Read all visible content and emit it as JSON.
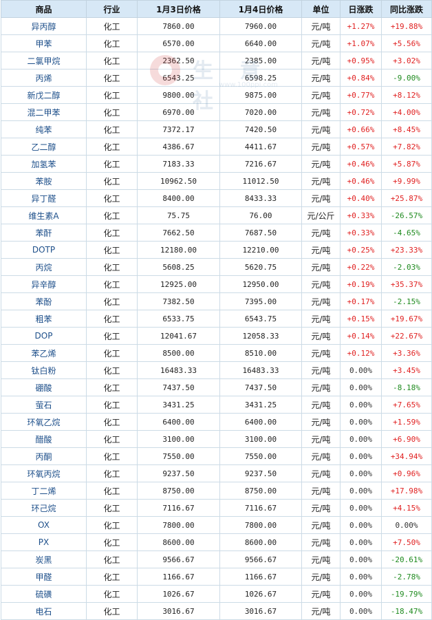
{
  "headers": [
    "商品",
    "行业",
    "1月3日价格",
    "1月4日价格",
    "单位",
    "日涨跌",
    "同比涨跌"
  ],
  "watermark": {
    "text": "生 意 社",
    "url": "www.100ppi.com"
  },
  "colors": {
    "up": "#e02020",
    "down": "#1e8a1e",
    "header_bg": "#d7e8f6",
    "name": "#1d4f8a"
  },
  "rows": [
    {
      "name": "异丙醇",
      "industry": "化工",
      "p1": "7860.00",
      "p2": "7960.00",
      "unit": "元/吨",
      "daily": "+1.27%",
      "yoy": "+19.88%"
    },
    {
      "name": "甲苯",
      "industry": "化工",
      "p1": "6570.00",
      "p2": "6640.00",
      "unit": "元/吨",
      "daily": "+1.07%",
      "yoy": "+5.56%"
    },
    {
      "name": "二氯甲烷",
      "industry": "化工",
      "p1": "2362.50",
      "p2": "2385.00",
      "unit": "元/吨",
      "daily": "+0.95%",
      "yoy": "+3.02%"
    },
    {
      "name": "丙烯",
      "industry": "化工",
      "p1": "6543.25",
      "p2": "6598.25",
      "unit": "元/吨",
      "daily": "+0.84%",
      "yoy": "-9.00%"
    },
    {
      "name": "新戊二醇",
      "industry": "化工",
      "p1": "9800.00",
      "p2": "9875.00",
      "unit": "元/吨",
      "daily": "+0.77%",
      "yoy": "+8.12%"
    },
    {
      "name": "混二甲苯",
      "industry": "化工",
      "p1": "6970.00",
      "p2": "7020.00",
      "unit": "元/吨",
      "daily": "+0.72%",
      "yoy": "+4.00%"
    },
    {
      "name": "纯苯",
      "industry": "化工",
      "p1": "7372.17",
      "p2": "7420.50",
      "unit": "元/吨",
      "daily": "+0.66%",
      "yoy": "+8.45%"
    },
    {
      "name": "乙二醇",
      "industry": "化工",
      "p1": "4386.67",
      "p2": "4411.67",
      "unit": "元/吨",
      "daily": "+0.57%",
      "yoy": "+7.82%"
    },
    {
      "name": "加氢苯",
      "industry": "化工",
      "p1": "7183.33",
      "p2": "7216.67",
      "unit": "元/吨",
      "daily": "+0.46%",
      "yoy": "+5.87%"
    },
    {
      "name": "苯胺",
      "industry": "化工",
      "p1": "10962.50",
      "p2": "11012.50",
      "unit": "元/吨",
      "daily": "+0.46%",
      "yoy": "+9.99%"
    },
    {
      "name": "异丁醛",
      "industry": "化工",
      "p1": "8400.00",
      "p2": "8433.33",
      "unit": "元/吨",
      "daily": "+0.40%",
      "yoy": "+25.87%"
    },
    {
      "name": "维生素A",
      "industry": "化工",
      "p1": "75.75",
      "p2": "76.00",
      "unit": "元/公斤",
      "daily": "+0.33%",
      "yoy": "-26.57%"
    },
    {
      "name": "苯酐",
      "industry": "化工",
      "p1": "7662.50",
      "p2": "7687.50",
      "unit": "元/吨",
      "daily": "+0.33%",
      "yoy": "-4.65%"
    },
    {
      "name": "DOTP",
      "industry": "化工",
      "p1": "12180.00",
      "p2": "12210.00",
      "unit": "元/吨",
      "daily": "+0.25%",
      "yoy": "+23.33%"
    },
    {
      "name": "丙烷",
      "industry": "化工",
      "p1": "5608.25",
      "p2": "5620.75",
      "unit": "元/吨",
      "daily": "+0.22%",
      "yoy": "-2.03%"
    },
    {
      "name": "异辛醇",
      "industry": "化工",
      "p1": "12925.00",
      "p2": "12950.00",
      "unit": "元/吨",
      "daily": "+0.19%",
      "yoy": "+35.37%"
    },
    {
      "name": "苯酚",
      "industry": "化工",
      "p1": "7382.50",
      "p2": "7395.00",
      "unit": "元/吨",
      "daily": "+0.17%",
      "yoy": "-2.15%"
    },
    {
      "name": "粗苯",
      "industry": "化工",
      "p1": "6533.75",
      "p2": "6543.75",
      "unit": "元/吨",
      "daily": "+0.15%",
      "yoy": "+19.67%"
    },
    {
      "name": "DOP",
      "industry": "化工",
      "p1": "12041.67",
      "p2": "12058.33",
      "unit": "元/吨",
      "daily": "+0.14%",
      "yoy": "+22.67%"
    },
    {
      "name": "苯乙烯",
      "industry": "化工",
      "p1": "8500.00",
      "p2": "8510.00",
      "unit": "元/吨",
      "daily": "+0.12%",
      "yoy": "+3.36%"
    },
    {
      "name": "钛白粉",
      "industry": "化工",
      "p1": "16483.33",
      "p2": "16483.33",
      "unit": "元/吨",
      "daily": "0.00%",
      "yoy": "+3.45%"
    },
    {
      "name": "硼酸",
      "industry": "化工",
      "p1": "7437.50",
      "p2": "7437.50",
      "unit": "元/吨",
      "daily": "0.00%",
      "yoy": "-8.18%"
    },
    {
      "name": "萤石",
      "industry": "化工",
      "p1": "3431.25",
      "p2": "3431.25",
      "unit": "元/吨",
      "daily": "0.00%",
      "yoy": "+7.65%"
    },
    {
      "name": "环氧乙烷",
      "industry": "化工",
      "p1": "6400.00",
      "p2": "6400.00",
      "unit": "元/吨",
      "daily": "0.00%",
      "yoy": "+1.59%"
    },
    {
      "name": "醋酸",
      "industry": "化工",
      "p1": "3100.00",
      "p2": "3100.00",
      "unit": "元/吨",
      "daily": "0.00%",
      "yoy": "+6.90%"
    },
    {
      "name": "丙酮",
      "industry": "化工",
      "p1": "7550.00",
      "p2": "7550.00",
      "unit": "元/吨",
      "daily": "0.00%",
      "yoy": "+34.94%"
    },
    {
      "name": "环氧丙烷",
      "industry": "化工",
      "p1": "9237.50",
      "p2": "9237.50",
      "unit": "元/吨",
      "daily": "0.00%",
      "yoy": "+0.96%"
    },
    {
      "name": "丁二烯",
      "industry": "化工",
      "p1": "8750.00",
      "p2": "8750.00",
      "unit": "元/吨",
      "daily": "0.00%",
      "yoy": "+17.98%"
    },
    {
      "name": "环己烷",
      "industry": "化工",
      "p1": "7116.67",
      "p2": "7116.67",
      "unit": "元/吨",
      "daily": "0.00%",
      "yoy": "+4.15%"
    },
    {
      "name": "OX",
      "industry": "化工",
      "p1": "7800.00",
      "p2": "7800.00",
      "unit": "元/吨",
      "daily": "0.00%",
      "yoy": "0.00%"
    },
    {
      "name": "PX",
      "industry": "化工",
      "p1": "8600.00",
      "p2": "8600.00",
      "unit": "元/吨",
      "daily": "0.00%",
      "yoy": "+7.50%"
    },
    {
      "name": "炭黑",
      "industry": "化工",
      "p1": "9566.67",
      "p2": "9566.67",
      "unit": "元/吨",
      "daily": "0.00%",
      "yoy": "-20.61%"
    },
    {
      "name": "甲醛",
      "industry": "化工",
      "p1": "1166.67",
      "p2": "1166.67",
      "unit": "元/吨",
      "daily": "0.00%",
      "yoy": "-2.78%"
    },
    {
      "name": "硫磺",
      "industry": "化工",
      "p1": "1026.67",
      "p2": "1026.67",
      "unit": "元/吨",
      "daily": "0.00%",
      "yoy": "-19.79%"
    },
    {
      "name": "电石",
      "industry": "化工",
      "p1": "3016.67",
      "p2": "3016.67",
      "unit": "元/吨",
      "daily": "0.00%",
      "yoy": "-18.47%"
    }
  ]
}
